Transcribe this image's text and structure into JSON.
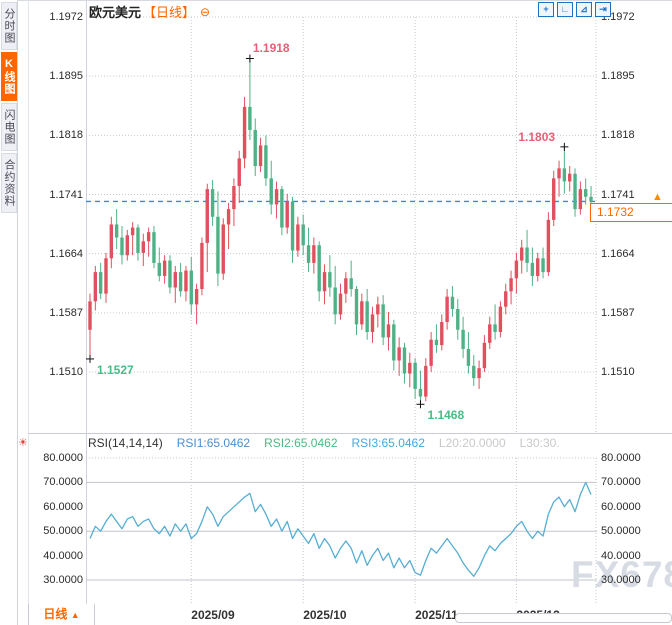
{
  "sidebar": {
    "tabs": [
      {
        "id": "time-chart",
        "label": "分时图",
        "active": false
      },
      {
        "id": "kline-chart",
        "label": "K线图",
        "active": true
      },
      {
        "id": "flash-chart",
        "label": "闪电图",
        "active": false
      },
      {
        "id": "contract-info",
        "label": "合约资料",
        "active": false
      }
    ]
  },
  "header": {
    "title": "欧元美元",
    "period": "【日线】",
    "collapse_icon": "⊖"
  },
  "toolbar": {
    "icons": [
      {
        "name": "crosshair-move-icon",
        "glyph": "+"
      },
      {
        "name": "axis-scale-left-icon",
        "glyph": "∟"
      },
      {
        "name": "axis-scale-right-icon",
        "glyph": "⊿"
      },
      {
        "name": "pan-to-latest-icon",
        "glyph": "⇥"
      }
    ]
  },
  "colors": {
    "up": "#e0505e",
    "down": "#4fb286",
    "accent": "#ff6600",
    "current_line": "#2f8bea",
    "rsi_line": "#57aed2",
    "grid": "#c6c9d1",
    "label_red": "#ea5d75",
    "label_green": "#45bd87",
    "axis_text": "#2b2b2b",
    "watermark": "#d6dbe4"
  },
  "chart_data": [
    {
      "type": "candlestick",
      "title": "欧元美元 日线",
      "y_ticks": [
        1.1972,
        1.1895,
        1.1818,
        1.1741,
        1.1664,
        1.1587,
        1.151
      ],
      "ylim": [
        1.144,
        1.199
      ],
      "grid": "dotted",
      "xticks": [
        {
          "label": "2025/09",
          "index": 19
        },
        {
          "label": "2025/10",
          "index": 40
        },
        {
          "label": "2025/11",
          "index": 61
        },
        {
          "label": "2025/12",
          "index": 80
        }
      ],
      "current_price": 1.1732,
      "current_price_label": "1.1732",
      "annotations": [
        {
          "text": "1.1918",
          "candle": 30,
          "at": "high",
          "color": "label_red",
          "align": "above"
        },
        {
          "text": "1.1803",
          "candle": 89,
          "at": "high",
          "color": "label_red",
          "align": "above-left"
        },
        {
          "text": "1.1527",
          "candle": 0,
          "at": "low",
          "color": "label_green",
          "align": "below-right"
        },
        {
          "text": "1.1468",
          "candle": 62,
          "at": "low",
          "color": "label_green",
          "align": "below-right"
        }
      ],
      "candles": [
        [
          1.1565,
          1.1612,
          1.1527,
          1.1602
        ],
        [
          1.1602,
          1.1648,
          1.159,
          1.164
        ],
        [
          1.164,
          1.1652,
          1.1605,
          1.1612
        ],
        [
          1.1612,
          1.1665,
          1.16,
          1.1658
        ],
        [
          1.1658,
          1.1712,
          1.1645,
          1.1702
        ],
        [
          1.1702,
          1.1722,
          1.167,
          1.1685
        ],
        [
          1.1685,
          1.17,
          1.165,
          1.1662
        ],
        [
          1.1662,
          1.1695,
          1.1655,
          1.1688
        ],
        [
          1.1688,
          1.1705,
          1.1662,
          1.1698
        ],
        [
          1.1698,
          1.1702,
          1.1655,
          1.1665
        ],
        [
          1.1665,
          1.169,
          1.1648,
          1.168
        ],
        [
          1.168,
          1.1698,
          1.166,
          1.1692
        ],
        [
          1.1692,
          1.17,
          1.1645,
          1.1652
        ],
        [
          1.1652,
          1.1672,
          1.1628,
          1.1635
        ],
        [
          1.1635,
          1.1662,
          1.1625,
          1.1655
        ],
        [
          1.1655,
          1.1662,
          1.1612,
          1.162
        ],
        [
          1.162,
          1.1648,
          1.16,
          1.164
        ],
        [
          1.164,
          1.1652,
          1.1608,
          1.1615
        ],
        [
          1.1615,
          1.1648,
          1.1602,
          1.1642
        ],
        [
          1.1642,
          1.166,
          1.1585,
          1.1598
        ],
        [
          1.1598,
          1.1625,
          1.1572,
          1.1618
        ],
        [
          1.1618,
          1.1685,
          1.161,
          1.1678
        ],
        [
          1.1678,
          1.1755,
          1.164,
          1.1748
        ],
        [
          1.1748,
          1.176,
          1.17,
          1.1712
        ],
        [
          1.1712,
          1.1745,
          1.1622,
          1.1638
        ],
        [
          1.1638,
          1.171,
          1.163,
          1.1702
        ],
        [
          1.1702,
          1.173,
          1.167,
          1.1722
        ],
        [
          1.1722,
          1.1762,
          1.17,
          1.1752
        ],
        [
          1.1752,
          1.1798,
          1.173,
          1.1788
        ],
        [
          1.1788,
          1.1868,
          1.1775,
          1.1855
        ],
        [
          1.1855,
          1.1918,
          1.1812,
          1.1825
        ],
        [
          1.1825,
          1.184,
          1.1765,
          1.1778
        ],
        [
          1.1778,
          1.1815,
          1.177,
          1.1805
        ],
        [
          1.1805,
          1.1818,
          1.1752,
          1.1762
        ],
        [
          1.1762,
          1.1785,
          1.1715,
          1.1728
        ],
        [
          1.1728,
          1.1758,
          1.171,
          1.1748
        ],
        [
          1.1748,
          1.1752,
          1.1688,
          1.1698
        ],
        [
          1.1698,
          1.1742,
          1.169,
          1.1732
        ],
        [
          1.1732,
          1.1738,
          1.1652,
          1.1668
        ],
        [
          1.1668,
          1.1712,
          1.166,
          1.1702
        ],
        [
          1.1702,
          1.1715,
          1.1662,
          1.1675
        ],
        [
          1.1675,
          1.1698,
          1.164,
          1.1652
        ],
        [
          1.1652,
          1.1685,
          1.1638,
          1.1675
        ],
        [
          1.1675,
          1.168,
          1.1602,
          1.1615
        ],
        [
          1.1615,
          1.165,
          1.1598,
          1.164
        ],
        [
          1.164,
          1.1662,
          1.1608,
          1.162
        ],
        [
          1.162,
          1.1648,
          1.1572,
          1.1585
        ],
        [
          1.1585,
          1.1625,
          1.1578,
          1.1612
        ],
        [
          1.1612,
          1.164,
          1.16,
          1.1632
        ],
        [
          1.1632,
          1.1655,
          1.1608,
          1.1618
        ],
        [
          1.1618,
          1.1622,
          1.1558,
          1.1572
        ],
        [
          1.1572,
          1.1612,
          1.1565,
          1.1602
        ],
        [
          1.1602,
          1.1618,
          1.1552,
          1.1562
        ],
        [
          1.1562,
          1.1595,
          1.1548,
          1.1585
        ],
        [
          1.1585,
          1.1608,
          1.1568,
          1.1598
        ],
        [
          1.1598,
          1.161,
          1.1545,
          1.1555
        ],
        [
          1.1555,
          1.1588,
          1.1538,
          1.1572
        ],
        [
          1.1572,
          1.1578,
          1.1512,
          1.1525
        ],
        [
          1.1525,
          1.1555,
          1.1505,
          1.1542
        ],
        [
          1.1542,
          1.1548,
          1.1495,
          1.1508
        ],
        [
          1.1508,
          1.1535,
          1.149,
          1.1522
        ],
        [
          1.1522,
          1.1528,
          1.1475,
          1.1488
        ],
        [
          1.1488,
          1.1512,
          1.1468,
          1.1478
        ],
        [
          1.1478,
          1.1528,
          1.1472,
          1.1518
        ],
        [
          1.1518,
          1.1562,
          1.151,
          1.1552
        ],
        [
          1.1552,
          1.1572,
          1.1535,
          1.1545
        ],
        [
          1.1545,
          1.1585,
          1.1538,
          1.1575
        ],
        [
          1.1575,
          1.1618,
          1.1565,
          1.1608
        ],
        [
          1.1608,
          1.1622,
          1.1582,
          1.1592
        ],
        [
          1.1592,
          1.1605,
          1.1552,
          1.1565
        ],
        [
          1.1565,
          1.1582,
          1.1528,
          1.154
        ],
        [
          1.154,
          1.1562,
          1.1508,
          1.1518
        ],
        [
          1.1518,
          1.1532,
          1.1492,
          1.1502
        ],
        [
          1.1502,
          1.1525,
          1.1488,
          1.1515
        ],
        [
          1.1515,
          1.1558,
          1.151,
          1.1548
        ],
        [
          1.1548,
          1.1582,
          1.154,
          1.1572
        ],
        [
          1.1572,
          1.1598,
          1.1552,
          1.1562
        ],
        [
          1.1562,
          1.1602,
          1.1555,
          1.1595
        ],
        [
          1.1595,
          1.1625,
          1.1585,
          1.1615
        ],
        [
          1.1615,
          1.1642,
          1.1598,
          1.1632
        ],
        [
          1.1632,
          1.1665,
          1.1612,
          1.1655
        ],
        [
          1.1655,
          1.1682,
          1.1638,
          1.1672
        ],
        [
          1.1672,
          1.1695,
          1.164,
          1.1652
        ],
        [
          1.1652,
          1.1672,
          1.1622,
          1.1635
        ],
        [
          1.1635,
          1.1665,
          1.1628,
          1.1658
        ],
        [
          1.1658,
          1.1672,
          1.1632,
          1.164
        ],
        [
          1.164,
          1.1718,
          1.1635,
          1.1708
        ],
        [
          1.1708,
          1.1772,
          1.17,
          1.1762
        ],
        [
          1.1762,
          1.1785,
          1.1738,
          1.1775
        ],
        [
          1.1775,
          1.1803,
          1.1742,
          1.1758
        ],
        [
          1.1758,
          1.1778,
          1.1745,
          1.1768
        ],
        [
          1.1768,
          1.1775,
          1.1712,
          1.1722
        ],
        [
          1.1722,
          1.1758,
          1.1715,
          1.1748
        ],
        [
          1.1748,
          1.1762,
          1.1728,
          1.1738
        ],
        [
          1.1738,
          1.1752,
          1.1722,
          1.1732
        ]
      ]
    },
    {
      "type": "line",
      "name": "RSI(14,14,14)",
      "y_ticks": [
        80,
        70,
        60,
        50,
        40,
        30
      ],
      "ylim": [
        25,
        85
      ],
      "solid_levels": [
        70,
        50,
        30
      ],
      "dotted_levels": [
        80
      ],
      "values": [
        47,
        52,
        50,
        54,
        57,
        54,
        51,
        55,
        56,
        52,
        54,
        55,
        51,
        49,
        52,
        48,
        53,
        50,
        53,
        47,
        49,
        54,
        60,
        57,
        52,
        56,
        58,
        60,
        62,
        64,
        65.5,
        58,
        61,
        57,
        52,
        55,
        50,
        54,
        47,
        51,
        48,
        45,
        49,
        43,
        47,
        44,
        39,
        43,
        46,
        43,
        37,
        42,
        36,
        40,
        43,
        38,
        41,
        35,
        39,
        35,
        38,
        33,
        32,
        38,
        43,
        41,
        44,
        47,
        44,
        41,
        37,
        34,
        31.5,
        35,
        40,
        44,
        42,
        45,
        47,
        49,
        52,
        54,
        50,
        47,
        50,
        48,
        57,
        62,
        64,
        60,
        63,
        58,
        65,
        70,
        65
      ]
    }
  ],
  "rsi_header": {
    "name": "RSI(14,14,14)",
    "items": [
      {
        "label": "RSI1:65.0462",
        "color": "#4a8fd3"
      },
      {
        "label": "RSI2:65.0462",
        "color": "#4cb982"
      },
      {
        "label": "RSI3:65.0462",
        "color": "#46a7df"
      },
      {
        "label": "L20:20.0000",
        "color": "#c9c9c9"
      },
      {
        "label": "L30:30.",
        "color": "#c9c9c9"
      }
    ]
  },
  "bottom_bar": {
    "period_label": "日线",
    "period_arrow": "▲"
  },
  "watermark": "FX678"
}
